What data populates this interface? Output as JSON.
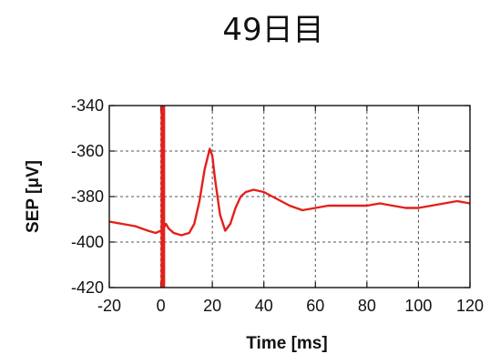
{
  "chart_data": {
    "type": "line",
    "title": "49日目",
    "xlabel": "Time [ms]",
    "ylabel": "SEP [μV]",
    "xlim": [
      -20,
      120
    ],
    "ylim": [
      -420,
      -340
    ],
    "xticks": [
      -20,
      0,
      20,
      40,
      60,
      80,
      100,
      120
    ],
    "yticks": [
      -340,
      -360,
      -380,
      -400,
      -420
    ],
    "grid": true,
    "series": [
      {
        "color": "#e3201b",
        "x": [
          -20,
          -15,
          -10,
          -5,
          -2,
          0,
          1,
          2,
          3,
          5,
          8,
          11,
          13,
          15,
          17,
          19,
          20,
          21,
          23,
          25,
          27,
          29,
          31,
          33,
          36,
          40,
          45,
          50,
          55,
          60,
          65,
          70,
          75,
          80,
          85,
          90,
          95,
          100,
          105,
          110,
          115,
          120
        ],
        "y": [
          -391,
          -392,
          -393,
          -395,
          -396,
          -395,
          -394,
          -392,
          -394,
          -396,
          -397,
          -396,
          -392,
          -382,
          -368,
          -359,
          -362,
          -372,
          -388,
          -395,
          -392,
          -385,
          -380,
          -378,
          -377,
          -378,
          -381,
          -384,
          -386,
          -385,
          -384,
          -384,
          -384,
          -384,
          -383,
          -384,
          -385,
          -385,
          -384,
          -383,
          -382,
          -383
        ]
      }
    ],
    "artifact": {
      "x": 0.8,
      "color": "#e3201b",
      "y_range": [
        -420,
        -340
      ]
    }
  }
}
